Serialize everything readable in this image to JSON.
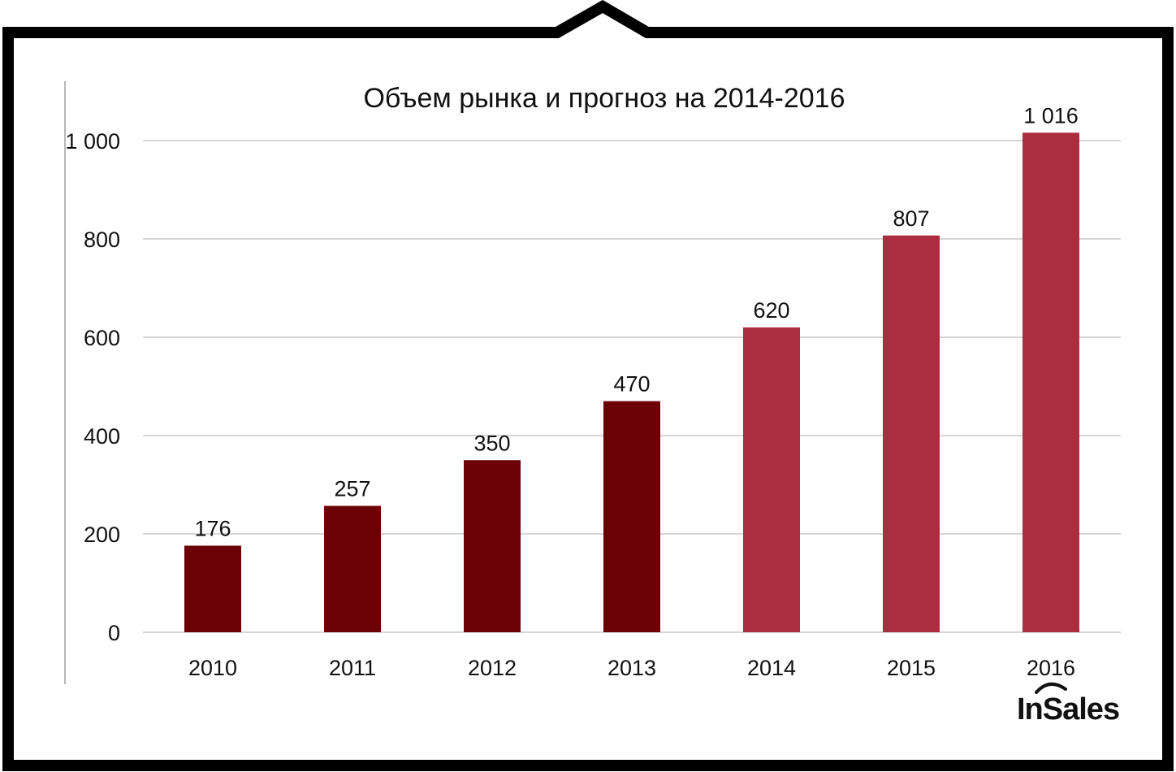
{
  "chart_data": {
    "type": "bar",
    "title": "Объем рынка и прогноз на 2014-2016",
    "xlabel": "",
    "ylabel": "",
    "categories": [
      "2010",
      "2011",
      "2012",
      "2013",
      "2014",
      "2015",
      "2016"
    ],
    "values": [
      176,
      257,
      350,
      470,
      620,
      807,
      1016
    ],
    "value_labels": [
      "176",
      "257",
      "350",
      "470",
      "620",
      "807",
      "1 016"
    ],
    "bar_types": [
      "actual",
      "actual",
      "actual",
      "actual",
      "forecast",
      "forecast",
      "forecast"
    ],
    "ylim": [
      0,
      1000
    ],
    "yticks": [
      0,
      200,
      400,
      600,
      800,
      1000
    ],
    "ytick_labels": [
      "0",
      "200",
      "400",
      "600",
      "800",
      "1 000"
    ],
    "grid": true,
    "colors": {
      "actual": "#6b0005",
      "forecast": "#ab2d3f"
    }
  },
  "logo": {
    "text": "InSales"
  }
}
